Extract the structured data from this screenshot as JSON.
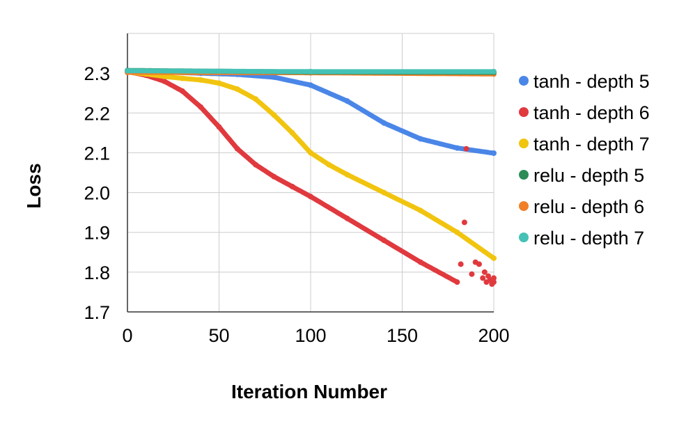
{
  "chart_data": {
    "type": "scatter",
    "title": "",
    "xlabel": "Iteration Number",
    "ylabel": "Loss",
    "xlim": [
      0,
      200
    ],
    "ylim": [
      1.7,
      2.4
    ],
    "xticks": [
      0,
      50,
      100,
      150,
      200
    ],
    "yticks": [
      1.7,
      1.8,
      1.9,
      2.0,
      2.1,
      2.2,
      2.3
    ],
    "ytick_labels": [
      "1.7",
      "1.8",
      "1.9",
      "2.0",
      "2.1",
      "2.2",
      "2.3"
    ],
    "grid": true,
    "legend_position": "right",
    "series": [
      {
        "name": "tanh - depth 5",
        "color": "#4a86e8",
        "x": [
          0,
          20,
          40,
          60,
          80,
          100,
          120,
          140,
          160,
          180,
          200
        ],
        "y": [
          2.305,
          2.303,
          2.3,
          2.297,
          2.29,
          2.27,
          2.23,
          2.175,
          2.135,
          2.112,
          2.099
        ]
      },
      {
        "name": "tanh - depth 6",
        "color": "#e0393e",
        "x": [
          0,
          10,
          20,
          30,
          40,
          50,
          60,
          70,
          80,
          90,
          100,
          120,
          140,
          160,
          180
        ],
        "y": [
          2.304,
          2.295,
          2.28,
          2.255,
          2.215,
          2.165,
          2.11,
          2.07,
          2.04,
          2.015,
          1.99,
          1.935,
          1.88,
          1.825,
          1.775
        ],
        "scatter_x": [
          182,
          184,
          185,
          188,
          190,
          192,
          194,
          195,
          196,
          197,
          198,
          199,
          200,
          200
        ],
        "scatter_y": [
          1.82,
          1.925,
          2.11,
          1.795,
          1.825,
          1.82,
          1.785,
          1.8,
          1.775,
          1.79,
          1.78,
          1.77,
          1.785,
          1.775
        ]
      },
      {
        "name": "tanh - depth 7",
        "color": "#f1c40f",
        "x": [
          0,
          10,
          20,
          30,
          40,
          50,
          60,
          70,
          80,
          90,
          100,
          110,
          120,
          140,
          160,
          180,
          200
        ],
        "y": [
          2.303,
          2.298,
          2.292,
          2.287,
          2.283,
          2.275,
          2.26,
          2.235,
          2.195,
          2.15,
          2.1,
          2.07,
          2.045,
          2.0,
          1.955,
          1.9,
          1.835
        ]
      },
      {
        "name": "relu - depth 5",
        "color": "#2e8b57",
        "x": [
          0,
          100,
          200
        ],
        "y": [
          2.307,
          2.303,
          2.302
        ]
      },
      {
        "name": "relu - depth 6",
        "color": "#f07f28",
        "x": [
          0,
          100,
          200
        ],
        "y": [
          2.302,
          2.301,
          2.298
        ]
      },
      {
        "name": "relu - depth 7",
        "color": "#45c2b5",
        "x": [
          0,
          100,
          200
        ],
        "y": [
          2.306,
          2.304,
          2.304
        ]
      }
    ]
  }
}
